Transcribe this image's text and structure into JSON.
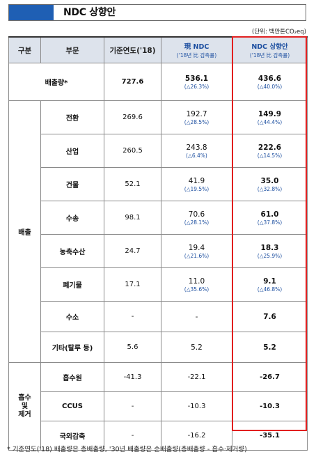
{
  "title": "NDC 상향안",
  "unit": "(단위: 백만톤CO₂eq)",
  "header": {
    "col1": "구분",
    "col2": "부문",
    "col3": "기준연도('18)",
    "col4_main": "現 NDC",
    "col4_sub": "('18년 比 감축률)",
    "col5_main": "NDC 상향안",
    "col5_sub": "('18년 比 감축률)"
  },
  "emission_total": {
    "label": "배출량*",
    "base": "727.6",
    "current": "536.1",
    "current_rate": "(△26.3%)",
    "proposal": "436.6",
    "proposal_rate": "(△40.0%)"
  },
  "emission_group_label": "배출",
  "emission_rows": [
    {
      "sector": "전환",
      "base": "269.6",
      "current": "192.7",
      "current_rate": "(△28.5%)",
      "proposal": "149.9",
      "proposal_rate": "(△44.4%)"
    },
    {
      "sector": "산업",
      "base": "260.5",
      "current": "243.8",
      "current_rate": "(△6.4%)",
      "proposal": "222.6",
      "proposal_rate": "(△14.5%)"
    },
    {
      "sector": "건물",
      "base": "52.1",
      "current": "41.9",
      "current_rate": "(△19.5%)",
      "proposal": "35.0",
      "proposal_rate": "(△32.8%)"
    },
    {
      "sector": "수송",
      "base": "98.1",
      "current": "70.6",
      "current_rate": "(△28.1%)",
      "proposal": "61.0",
      "proposal_rate": "(△37.8%)"
    },
    {
      "sector": "농축수산",
      "base": "24.7",
      "current": "19.4",
      "current_rate": "(△21.6%)",
      "proposal": "18.3",
      "proposal_rate": "(△25.9%)"
    },
    {
      "sector": "폐기물",
      "base": "17.1",
      "current": "11.0",
      "current_rate": "(△35.6%)",
      "proposal": "9.1",
      "proposal_rate": "(△46.8%)"
    },
    {
      "sector": "수소",
      "base": "-",
      "current": "-",
      "current_rate": "",
      "proposal": "7.6",
      "proposal_rate": ""
    },
    {
      "sector": "기타(탈루 등)",
      "base": "5.6",
      "current": "5.2",
      "current_rate": "",
      "proposal": "5.2",
      "proposal_rate": ""
    }
  ],
  "absorb_group_label": [
    "흡수",
    "및",
    "제거"
  ],
  "absorb_rows": [
    {
      "sector": "흡수원",
      "base": "-41.3",
      "current": "-22.1",
      "proposal": "-26.7"
    },
    {
      "sector": "CCUS",
      "base": "-",
      "current": "-10.3",
      "proposal": "-10.3"
    },
    {
      "sector": "국외감축",
      "base": "-",
      "current": "-16.2",
      "proposal": "-35.1"
    }
  ],
  "footnote": "* 기준연도('18) 배출량은 총배출량, '30년 배출량은 순배출량(총배출량 - 흡수·제거량)",
  "colors": {
    "accent": "#1f5fb4",
    "highlight_frame": "#e21f1f",
    "header_bg": "#dde3ec",
    "rate_text": "#1d4fa0"
  }
}
